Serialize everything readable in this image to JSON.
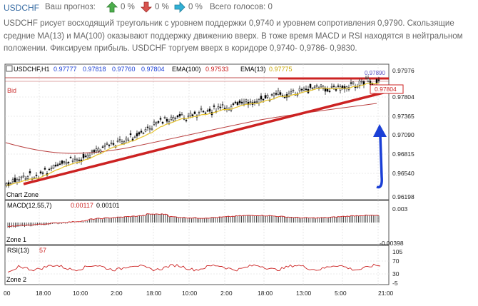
{
  "header": {
    "symbol": "USDCHF",
    "forecast_label": "Ваш прогноз:",
    "votes": [
      {
        "icon": "arrow-up-icon",
        "color": "#4cae4c",
        "percent": "0 %"
      },
      {
        "icon": "arrow-down-icon",
        "color": "#d9534f",
        "percent": "0 %"
      },
      {
        "icon": "arrow-right-icon",
        "color": "#31b0d5",
        "percent": "0 %"
      }
    ],
    "total_votes": "Всего голосов: 0"
  },
  "description": "USDCHF рисует восходящий треугольник с уровнем поддержки 0,9740 и уровнем сопротивления 0,9790. Скользящие средние MA(13) и MA(100) оказывают поддержку движению вверх. В тоже время MACD и RSI находятся в нейтральном положении. Фиксируем прибыль. USDCHF торгуем вверх в коридоре 0,9740- 0,9786- 0,9830.",
  "chart": {
    "info": {
      "symbol_tf": "USDCHF,H1",
      "open": "0.97777",
      "high": "0.97818",
      "low": "0.97760",
      "close": "0.97804",
      "ema100_label": "EMA(100)",
      "ema100_value": "0.97533",
      "ema13_label": "EMA(13)",
      "ema13_value": "0.97775"
    },
    "bid_label": "Bid",
    "zone_main": "Chart Zone",
    "price_current": "0.97804",
    "price_top_label": "0.97890",
    "price_ticks": [
      "0.97976",
      "0.97804",
      "0.97365",
      "0.97090",
      "0.96815",
      "0.96540",
      "0.96198"
    ],
    "macd": {
      "label": "MACD(12,55,7)",
      "value1": "0.00117",
      "value2": "0.00101",
      "ticks": [
        "0.003",
        "-0.00398"
      ],
      "zone": "Zone 1"
    },
    "rsi": {
      "label": "RSI(13)",
      "value": "57",
      "ticks": [
        "105",
        "70",
        "30",
        "-5"
      ],
      "zone": "Zone 2"
    },
    "time_ticks": [
      "00",
      "18:00",
      "10:00",
      "2:00",
      "18:00",
      "10:00",
      "2:00",
      "18:00",
      "13:00",
      "5:00",
      "21:00"
    ],
    "colors": {
      "bg": "#ffffff",
      "candles": "#000000",
      "ema13": "#e6c229",
      "ema100": "#b94040",
      "trendline": "#cc2222",
      "arrow": "#1a3fd6",
      "grid": "#d8d8d8"
    }
  }
}
